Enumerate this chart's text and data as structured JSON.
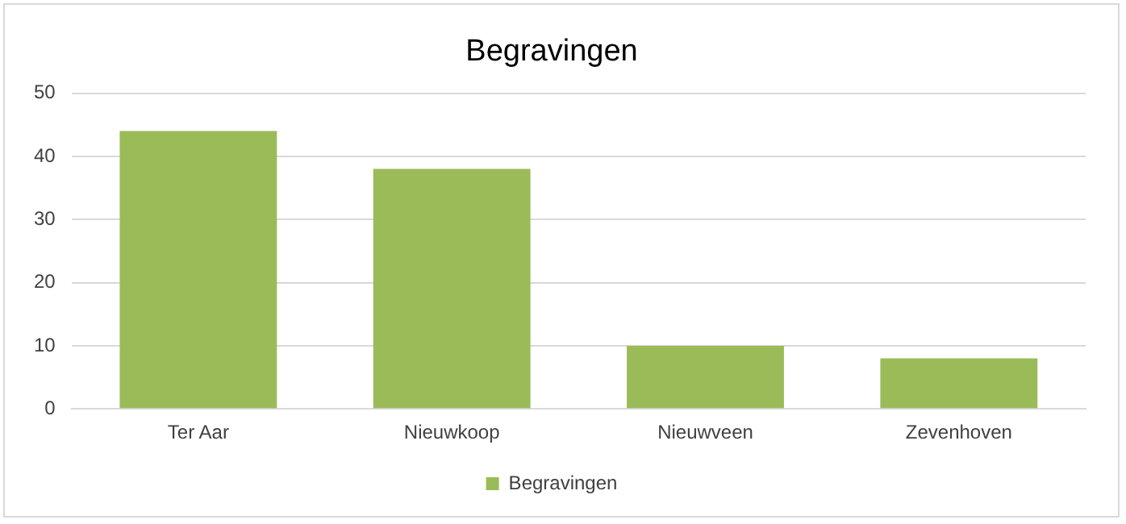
{
  "chart_data": {
    "type": "bar",
    "title": "Begravingen",
    "categories": [
      "Ter Aar",
      "Nieuwkoop",
      "Nieuwveen",
      "Zevenhoven"
    ],
    "series": [
      {
        "name": "Begravingen",
        "color": "#9bbb59",
        "values": [
          44,
          38,
          10,
          8
        ]
      }
    ],
    "ylim": [
      0,
      50
    ],
    "yticks": [
      0,
      10,
      20,
      30,
      40,
      50
    ],
    "grid": "y",
    "legend": "bottom"
  }
}
